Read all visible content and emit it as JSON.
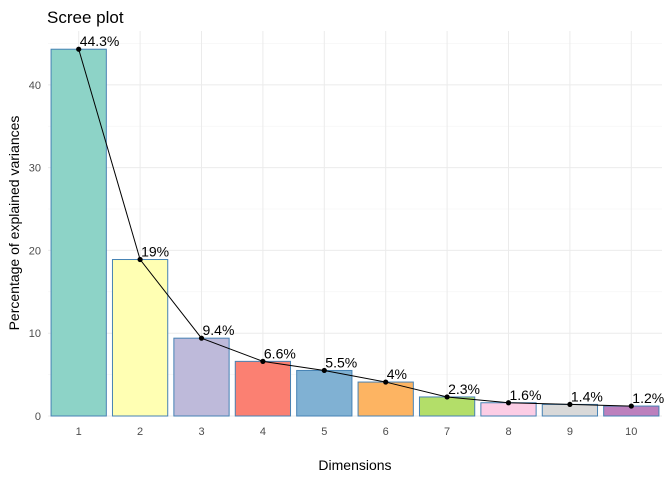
{
  "chart_data": {
    "type": "bar",
    "title": "Scree plot",
    "xlabel": "Dimensions",
    "ylabel": "Percentage of explained variances",
    "categories": [
      "1",
      "2",
      "3",
      "4",
      "5",
      "6",
      "7",
      "8",
      "9",
      "10"
    ],
    "values": [
      44.3,
      18.9,
      9.4,
      6.6,
      5.5,
      4.1,
      2.3,
      1.6,
      1.4,
      1.2
    ],
    "data_labels": [
      "44.3%",
      "19%",
      "9.4%",
      "6.6%",
      "5.5%",
      "4%",
      "2.3%",
      "1.6%",
      "1.4%",
      "1.2%"
    ],
    "ylim": [
      0,
      46.5
    ],
    "yticks": [
      0,
      10,
      20,
      30,
      40
    ],
    "ytick_labels": [
      "0",
      "10",
      "20",
      "30",
      "40"
    ],
    "grid": true,
    "line_overlay": true,
    "bar_colors": [
      "#8DD3C7",
      "#FFFFB3",
      "#BEBADA",
      "#FB8072",
      "#80B1D3",
      "#FDB462",
      "#B3DE69",
      "#FCCDE5",
      "#D9D9D9",
      "#BC80BD"
    ],
    "bar_outline_color": "#4682B4",
    "line_color": "#000000"
  }
}
